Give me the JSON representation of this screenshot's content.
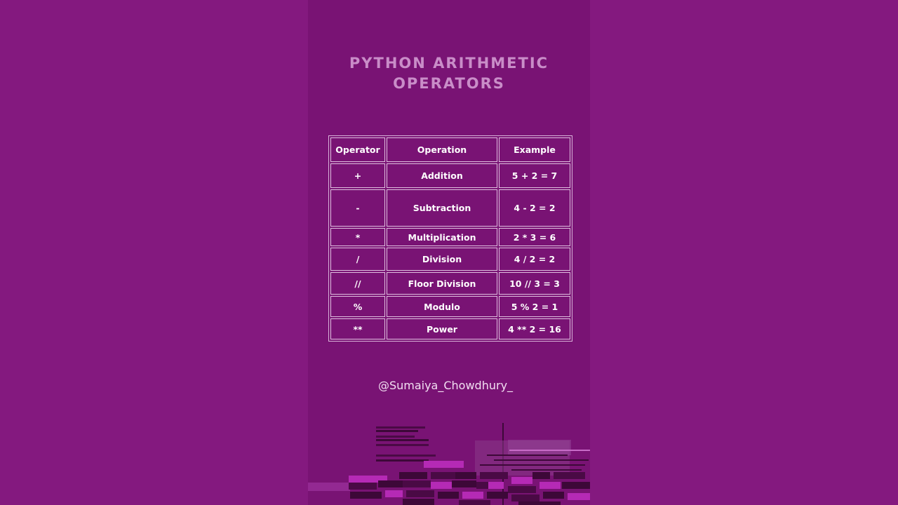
{
  "title": {
    "line1": "PYTHON ARITHMETIC",
    "line2": "OPERATORS"
  },
  "table": {
    "headers": [
      "Operator",
      "Operation",
      "Example"
    ],
    "rows": [
      {
        "operator": "+",
        "operation": "Addition",
        "example": "5 + 2 = 7"
      },
      {
        "operator": "-",
        "operation": "Subtraction",
        "example": "4 - 2 = 2"
      },
      {
        "operator": "*",
        "operation": "Multiplication",
        "example": "2 * 3 = 6"
      },
      {
        "operator": "/",
        "operation": "Division",
        "example": "4 / 2 = 2"
      },
      {
        "operator": "//",
        "operation": "Floor Division",
        "example": "10 // 3 = 3"
      },
      {
        "operator": "%",
        "operation": "Modulo",
        "example": "5 % 2 = 1"
      },
      {
        "operator": "**",
        "operation": "Power",
        "example": "4 ** 2 = 16"
      }
    ]
  },
  "handle": "@Sumaiya_Chowdhury_",
  "colors": {
    "background": "#821b82",
    "card": "#791374",
    "title": "#c98dc8",
    "table_border": "#e0bfe0",
    "text": "#ffffff",
    "accent": "#b52ab5"
  }
}
